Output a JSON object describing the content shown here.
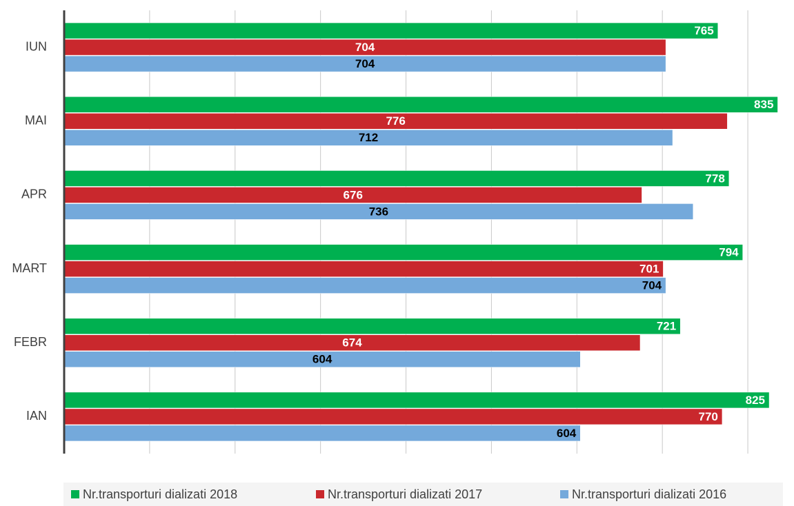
{
  "chart_data": {
    "type": "barh",
    "categories": [
      "IAN",
      "FEBR",
      "MART",
      "APR",
      "MAI",
      "IUN"
    ],
    "series": [
      {
        "name": "Nr.transporturi dializati 2018",
        "color": "#00b050",
        "values": [
          825,
          721,
          794,
          778,
          835,
          765
        ]
      },
      {
        "name": "Nr.transporturi dializati 2017",
        "color": "#c9282d",
        "values": [
          770,
          674,
          701,
          676,
          776,
          704
        ]
      },
      {
        "name": "Nr.transporturi dializati 2016",
        "color": "#74a9db",
        "values": [
          604,
          604,
          704,
          736,
          712,
          704
        ]
      }
    ],
    "xlim": [
      0,
      850
    ],
    "xticks": [
      0,
      100,
      200,
      300,
      400,
      500,
      600,
      700,
      800
    ],
    "grid": true,
    "legend": "bottom"
  }
}
